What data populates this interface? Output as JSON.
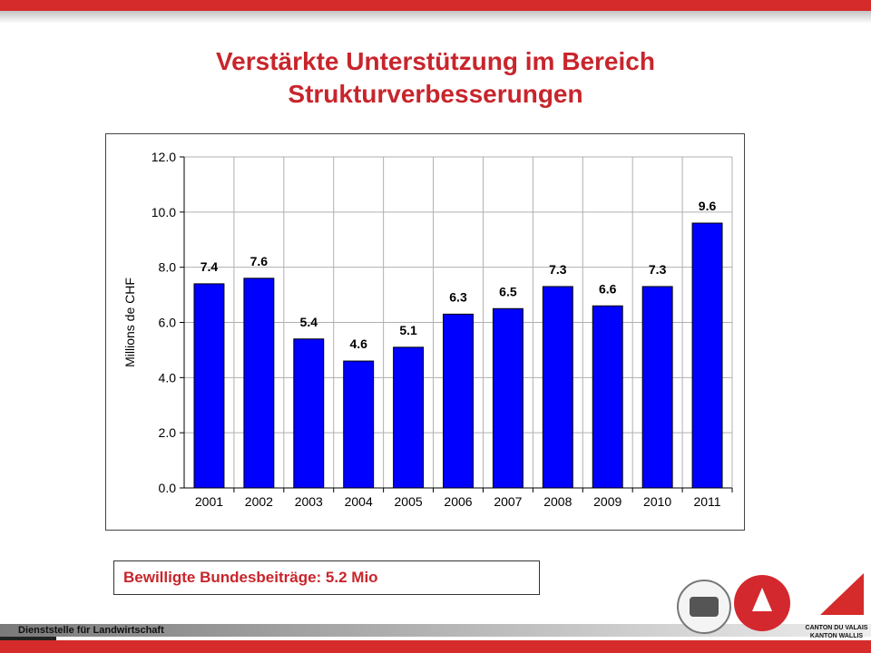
{
  "title_line1": "Verstärkte Unterstützung im Bereich",
  "title_line2": "Strukturverbesserungen",
  "note": "Bewilligte Bundesbeiträge: 5.2 Mio",
  "footer": "Dienststelle für Landwirtschaft",
  "canton_line1": "CANTON DU VALAIS",
  "canton_line2": "KANTON WALLIS",
  "colors": {
    "bar": "#0000ff",
    "accent": "#c8252c",
    "band": "#d52b2b"
  },
  "chart_data": {
    "type": "bar",
    "categories": [
      "2001",
      "2002",
      "2003",
      "2004",
      "2005",
      "2006",
      "2007",
      "2008",
      "2009",
      "2010",
      "2011"
    ],
    "values": [
      7.4,
      7.6,
      5.4,
      4.6,
      5.1,
      6.3,
      6.5,
      7.3,
      6.6,
      7.3,
      9.6
    ],
    "data_labels": [
      "7.4",
      "7.6",
      "5.4",
      "4.6",
      "5.1",
      "6.3",
      "6.5",
      "7.3",
      "6.6",
      "7.3",
      "9.6"
    ],
    "ylabel": "Millions de CHF",
    "ylim": [
      0,
      12
    ],
    "yticks": [
      "0.0",
      "2.0",
      "4.0",
      "6.0",
      "8.0",
      "10.0",
      "12.0"
    ],
    "grid": true
  }
}
